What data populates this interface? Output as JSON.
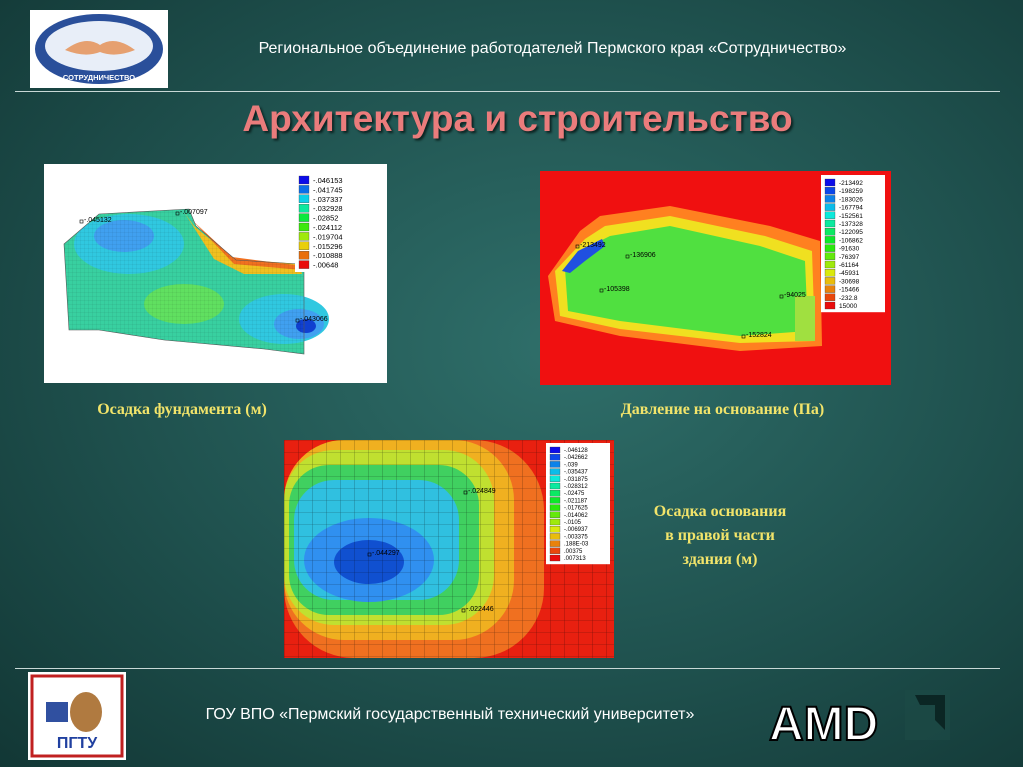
{
  "header": {
    "logo_text": "СОТРУДНИЧЕСТВО",
    "org": "Региональное объединение работодателей Пермского края «Сотрудничество»"
  },
  "title": "Архитектура и строительство",
  "panels": [
    {
      "caption": "Осадка фундамента (м)",
      "legend": [
        "-.046153",
        "-.041745",
        "-.037337",
        "-.032928",
        "-.02852",
        "-.024112",
        "-.019704",
        "-.015296",
        "-.010888",
        "-.00648"
      ],
      "annotations": [
        "-.045132",
        "-.007097",
        "-.043066"
      ]
    },
    {
      "caption": "Давление на основание (Па)",
      "legend": [
        "-213492",
        "-198259",
        "-183026",
        "-167794",
        "-152561",
        "-137328",
        "-122095",
        "-106862",
        "-91630",
        "-76397",
        "-61164",
        "-45931",
        "-30698",
        "-15466",
        "-232.8",
        "15000"
      ],
      "annotations": [
        "-213492",
        "-136906",
        "-105398",
        "-94025",
        "-152824"
      ]
    },
    {
      "caption": "Осадка основания в правой части здания (м)",
      "legend": [
        "-.046128",
        "-.042662",
        "-.039",
        "-.035437",
        "-.031875",
        "-.028312",
        "-.02475",
        "-.021187",
        "-.017625",
        "-.014062",
        "-.0105",
        "-.006937",
        "-.003375",
        ".188E-03",
        ".00375",
        ".007313"
      ],
      "annotations": [
        "-.024849",
        "-.044297",
        "-.022446"
      ]
    }
  ],
  "footer": {
    "logo_text": "ПГТУ",
    "university": "ГОУ ВПО «Пермский государственный технический университет»",
    "brand": "AMD"
  }
}
